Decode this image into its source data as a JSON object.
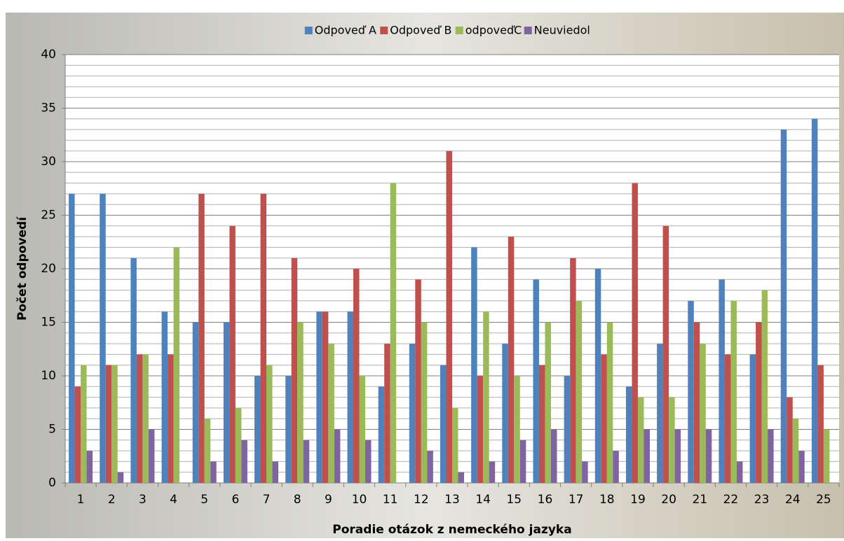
{
  "chart_data": {
    "type": "bar",
    "y_label": "Počet odpovedí",
    "x_label": "Poradie otázok z  nemeckého jazyka",
    "categories": [
      "1",
      "2",
      "3",
      "4",
      "5",
      "6",
      "7",
      "8",
      "9",
      "10",
      "11",
      "12",
      "13",
      "14",
      "15",
      "16",
      "17",
      "18",
      "19",
      "20",
      "21",
      "22",
      "23",
      "24",
      "25"
    ],
    "series": [
      {
        "name": "Odpoveď A",
        "color": "#4f81bd",
        "values": [
          27,
          27,
          21,
          16,
          15,
          15,
          10,
          10,
          16,
          16,
          9,
          13,
          11,
          22,
          13,
          19,
          10,
          20,
          9,
          13,
          17,
          19,
          12,
          33,
          34
        ]
      },
      {
        "name": "Odpoveď B",
        "color": "#c0504d",
        "values": [
          9,
          11,
          12,
          12,
          27,
          24,
          27,
          21,
          16,
          20,
          13,
          19,
          31,
          10,
          23,
          11,
          21,
          12,
          28,
          24,
          15,
          12,
          15,
          8,
          11
        ]
      },
      {
        "name": "odpoveďC",
        "color": "#9bbb59",
        "values": [
          11,
          11,
          12,
          22,
          6,
          7,
          11,
          15,
          13,
          10,
          28,
          15,
          7,
          16,
          10,
          15,
          17,
          15,
          8,
          8,
          13,
          17,
          18,
          6,
          5
        ]
      },
      {
        "name": "Neuviedol",
        "color": "#8064a2",
        "values": [
          3,
          1,
          5,
          0,
          2,
          4,
          2,
          4,
          5,
          4,
          0,
          3,
          1,
          2,
          4,
          5,
          2,
          3,
          5,
          5,
          5,
          2,
          5,
          3,
          0
        ]
      }
    ],
    "ylim": [
      0,
      40
    ],
    "yticks": [
      0,
      5,
      10,
      15,
      20,
      25,
      30,
      35,
      40
    ],
    "grid": true,
    "legend": "top"
  }
}
